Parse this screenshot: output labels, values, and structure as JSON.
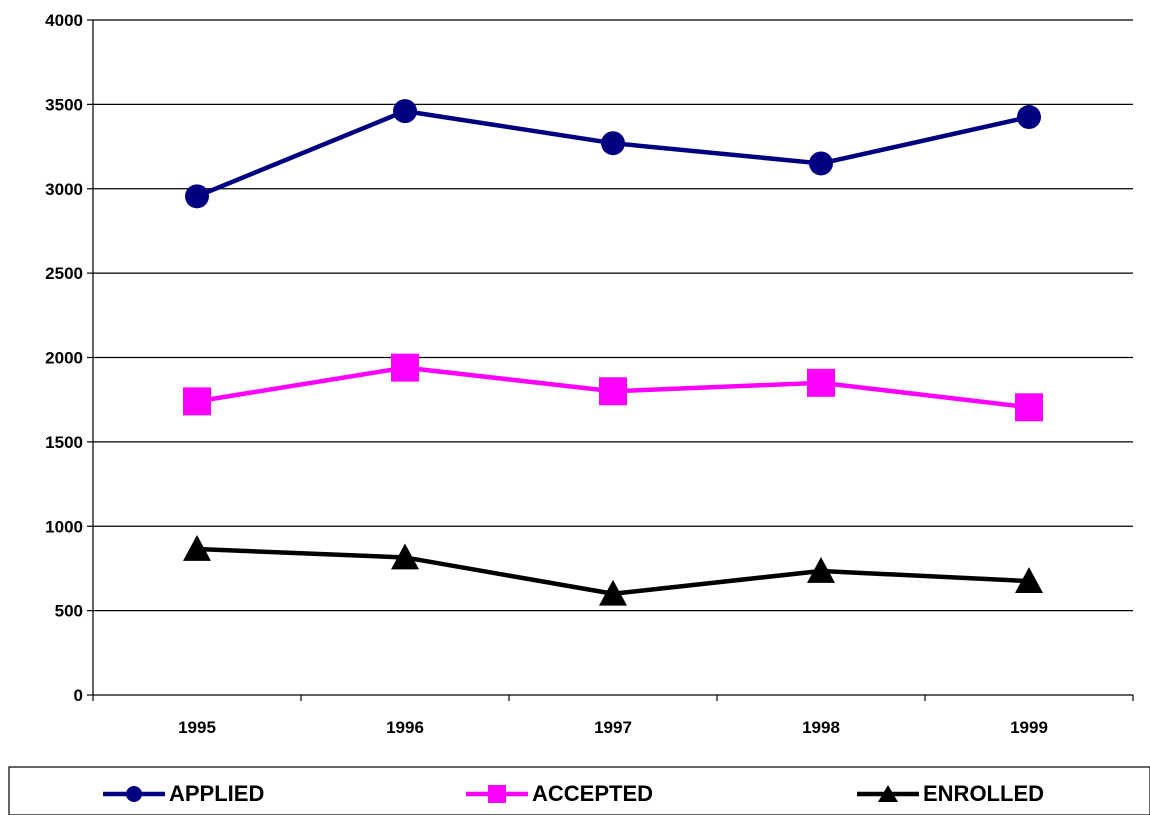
{
  "chart_data": {
    "type": "line",
    "categories": [
      "1995",
      "1996",
      "1997",
      "1998",
      "1999"
    ],
    "series": [
      {
        "name": "APPLIED",
        "values": [
          2955,
          3460,
          3270,
          3150,
          3425
        ],
        "color": "#000080",
        "marker": "circle"
      },
      {
        "name": "ACCEPTED",
        "values": [
          1740,
          1940,
          1800,
          1850,
          1705
        ],
        "color": "#FF00FF",
        "marker": "square"
      },
      {
        "name": "ENROLLED",
        "values": [
          865,
          815,
          600,
          735,
          675
        ],
        "color": "#000000",
        "marker": "triangle"
      }
    ],
    "y_ticks": [
      "0",
      "500",
      "1000",
      "1500",
      "2000",
      "2500",
      "3000",
      "3500",
      "4000"
    ],
    "ylim": [
      0,
      4000
    ],
    "grid": true,
    "legend_position": "bottom"
  }
}
